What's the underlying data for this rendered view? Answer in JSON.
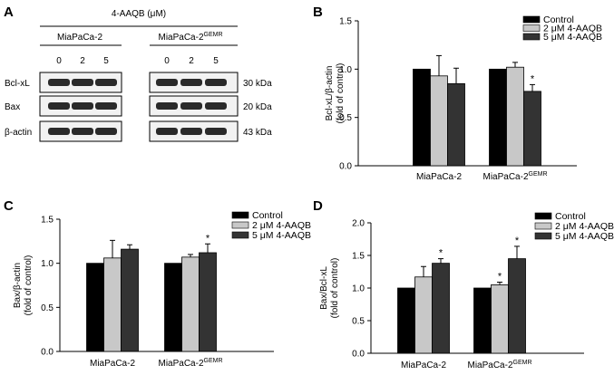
{
  "panels": {
    "A": {
      "letter": "A",
      "treatment_label": "4-AAQB (μM)",
      "cell_lines": [
        {
          "name": "MiaPaCa-2",
          "sup": ""
        },
        {
          "name": "MiaPaCa-2",
          "sup": "GEMR"
        }
      ],
      "doses": [
        "0",
        "2",
        "5"
      ],
      "proteins": [
        "Bcl-xL",
        "Bax",
        "β-actin"
      ],
      "sizes": [
        "30 kDa",
        "20 kDa",
        "43 kDa"
      ],
      "blot_color": "#2a2a2a"
    }
  },
  "colors": {
    "control": "#000000",
    "dose2": "#c8c8c8",
    "dose5": "#333333"
  },
  "chart_data": [
    {
      "letter": "B",
      "type": "bar",
      "categories": [
        "MiaPaCa-2",
        "MiaPaCa-2"
      ],
      "category_sups": [
        "",
        "GEMR"
      ],
      "series": [
        {
          "name": "Control",
          "values": [
            1.0,
            1.0
          ],
          "errors": [
            0,
            0
          ]
        },
        {
          "name": "2 μM 4-AAQB",
          "values": [
            0.93,
            1.02
          ],
          "errors": [
            0.21,
            0.05
          ]
        },
        {
          "name": "5 μM 4-AAQB",
          "values": [
            0.85,
            0.77
          ],
          "errors": [
            0.16,
            0.07
          ]
        }
      ],
      "significance": [
        [
          false,
          false,
          false
        ],
        [
          false,
          false,
          true
        ]
      ],
      "ylabel_lines": [
        "Bcl-xL/β-actin",
        "(fold of control)"
      ],
      "ylim": [
        0,
        1.5
      ],
      "yticks": [
        "0.0",
        "0.5",
        "1.0",
        "1.5"
      ],
      "star": "*"
    },
    {
      "letter": "C",
      "type": "bar",
      "categories": [
        "MiaPaCa-2",
        "MiaPaCa-2"
      ],
      "category_sups": [
        "",
        "GEMR"
      ],
      "series": [
        {
          "name": "Control",
          "values": [
            1.0,
            1.0
          ],
          "errors": [
            0,
            0
          ]
        },
        {
          "name": "2 μM 4-AAQB",
          "values": [
            1.06,
            1.07
          ],
          "errors": [
            0.2,
            0.03
          ]
        },
        {
          "name": "5 μM 4-AAQB",
          "values": [
            1.16,
            1.12
          ],
          "errors": [
            0.05,
            0.1
          ]
        }
      ],
      "significance": [
        [
          false,
          false,
          false
        ],
        [
          false,
          false,
          true
        ]
      ],
      "ylabel_lines": [
        "Bax/β-actin",
        "(fold of control)"
      ],
      "ylim": [
        0,
        1.5
      ],
      "yticks": [
        "0.0",
        "0.5",
        "1.0",
        "1.5"
      ],
      "star": "*"
    },
    {
      "letter": "D",
      "type": "bar",
      "categories": [
        "MiaPaCa-2",
        "MiaPaCa-2"
      ],
      "category_sups": [
        "",
        "GEMR"
      ],
      "series": [
        {
          "name": "Control",
          "values": [
            1.0,
            1.0
          ],
          "errors": [
            0,
            0
          ]
        },
        {
          "name": "2 μM 4-AAQB",
          "values": [
            1.17,
            1.05
          ],
          "errors": [
            0.16,
            0.04
          ]
        },
        {
          "name": "5 μM 4-AAQB",
          "values": [
            1.38,
            1.45
          ],
          "errors": [
            0.07,
            0.19
          ]
        }
      ],
      "significance": [
        [
          false,
          false,
          true
        ],
        [
          false,
          true,
          true
        ]
      ],
      "ylabel_lines": [
        "Bax/Bcl-xL",
        "(fold of control)"
      ],
      "ylim": [
        0,
        2.0
      ],
      "yticks": [
        "0.0",
        "0.5",
        "1.0",
        "1.5",
        "2.0"
      ],
      "star": "*"
    }
  ]
}
